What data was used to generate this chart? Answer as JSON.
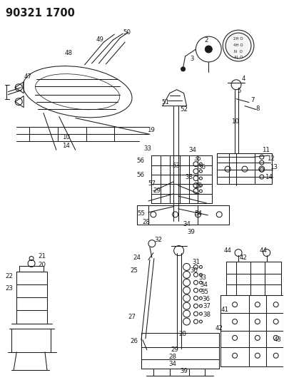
{
  "title": "90321 1700",
  "bg_color": "#ffffff",
  "line_color": "#1a1a1a",
  "title_fontsize": 10.5,
  "label_fontsize": 6.2,
  "fig_width": 3.98,
  "fig_height": 5.33,
  "dpi": 100,
  "shift_pattern": [
    "2H O",
    "4H O",
    "N  O",
    "4L O"
  ]
}
